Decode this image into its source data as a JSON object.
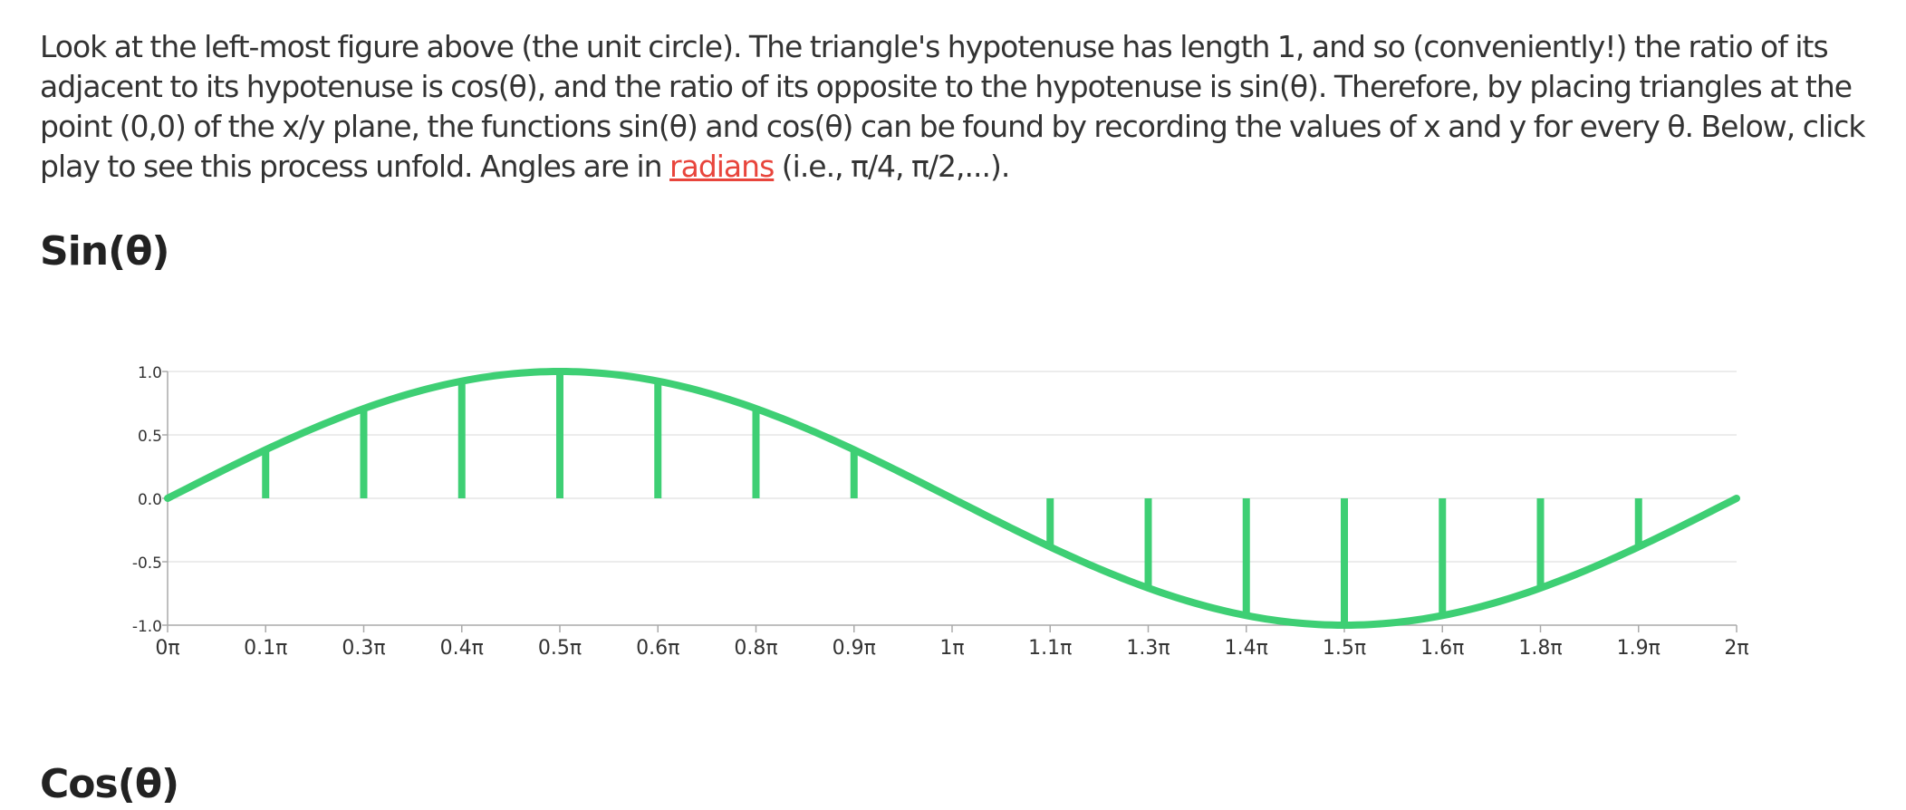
{
  "intro": {
    "text_before_link": "Look at the left-most figure above (the unit circle). The triangle's hypotenuse has length 1, and so (conveniently!) the ratio of its adjacent to its hypotenuse is cos(θ), and the ratio of its opposite to the hypotenuse is sin(θ). Therefore, by placing triangles at the point (0,0) of the x/y plane, the functions sin(θ) and cos(θ) can be found by recording the values of x and y for every θ. Below, click play to see this process unfold. Angles are in ",
    "link_text": "radians",
    "text_after_link": " (i.e., π/4, π/2,...)."
  },
  "sections": {
    "sin_title": "Sin(θ)",
    "cos_title": "Cos(θ)"
  },
  "colors": {
    "curve": "#3ecf74",
    "link": "#e8453c",
    "grid": "#e6e6e6",
    "axis": "#aaaaaa"
  },
  "chart_data": {
    "type": "line",
    "title": "Sin(θ)",
    "xlabel": "",
    "ylabel": "",
    "xlim": [
      0,
      6.283185
    ],
    "ylim": [
      -1,
      1
    ],
    "grid": true,
    "yticks": [
      {
        "value": 1.0,
        "label": "1.0"
      },
      {
        "value": 0.5,
        "label": "0.5"
      },
      {
        "value": 0.0,
        "label": "0.0"
      },
      {
        "value": -0.5,
        "label": "-0.5"
      },
      {
        "value": -1.0,
        "label": "-1.0"
      }
    ],
    "xticks": [
      {
        "value": 0.0,
        "label": "0π"
      },
      {
        "value": 0.392699,
        "label": "0.1π"
      },
      {
        "value": 0.785398,
        "label": "0.3π"
      },
      {
        "value": 1.178097,
        "label": "0.4π"
      },
      {
        "value": 1.570796,
        "label": "0.5π"
      },
      {
        "value": 1.963495,
        "label": "0.6π"
      },
      {
        "value": 2.356194,
        "label": "0.8π"
      },
      {
        "value": 2.748894,
        "label": "0.9π"
      },
      {
        "value": 3.141593,
        "label": "1π"
      },
      {
        "value": 3.534292,
        "label": "1.1π"
      },
      {
        "value": 3.926991,
        "label": "1.3π"
      },
      {
        "value": 4.31969,
        "label": "1.4π"
      },
      {
        "value": 4.712389,
        "label": "1.5π"
      },
      {
        "value": 5.105088,
        "label": "1.6π"
      },
      {
        "value": 5.497787,
        "label": "1.8π"
      },
      {
        "value": 5.890486,
        "label": "1.9π"
      },
      {
        "value": 6.283185,
        "label": "2π"
      }
    ],
    "series": [
      {
        "x": [
          0,
          0.392699,
          0.785398,
          1.178097,
          1.570796,
          1.963495,
          2.356194,
          2.748894,
          3.141593,
          3.534292,
          3.926991,
          4.31969,
          4.712389,
          5.105088,
          5.497787,
          5.890486,
          6.283185
        ],
        "y": [
          0,
          0.3827,
          0.7071,
          0.9239,
          1.0,
          0.9239,
          0.7071,
          0.3827,
          0,
          -0.3827,
          -0.7071,
          -0.9239,
          -1.0,
          -0.9239,
          -0.7071,
          -0.3827,
          0
        ]
      }
    ],
    "stems": [
      {
        "x": 0.392699,
        "y": 0.3827
      },
      {
        "x": 0.785398,
        "y": 0.7071
      },
      {
        "x": 1.178097,
        "y": 0.9239
      },
      {
        "x": 1.570796,
        "y": 1.0
      },
      {
        "x": 1.963495,
        "y": 0.9239
      },
      {
        "x": 2.356194,
        "y": 0.7071
      },
      {
        "x": 2.748894,
        "y": 0.3827
      },
      {
        "x": 3.534292,
        "y": -0.3827
      },
      {
        "x": 3.926991,
        "y": -0.7071
      },
      {
        "x": 4.31969,
        "y": -0.9239
      },
      {
        "x": 4.712389,
        "y": -1.0
      },
      {
        "x": 5.105088,
        "y": -0.9239
      },
      {
        "x": 5.497787,
        "y": -0.7071
      },
      {
        "x": 5.890486,
        "y": -0.3827
      }
    ]
  }
}
